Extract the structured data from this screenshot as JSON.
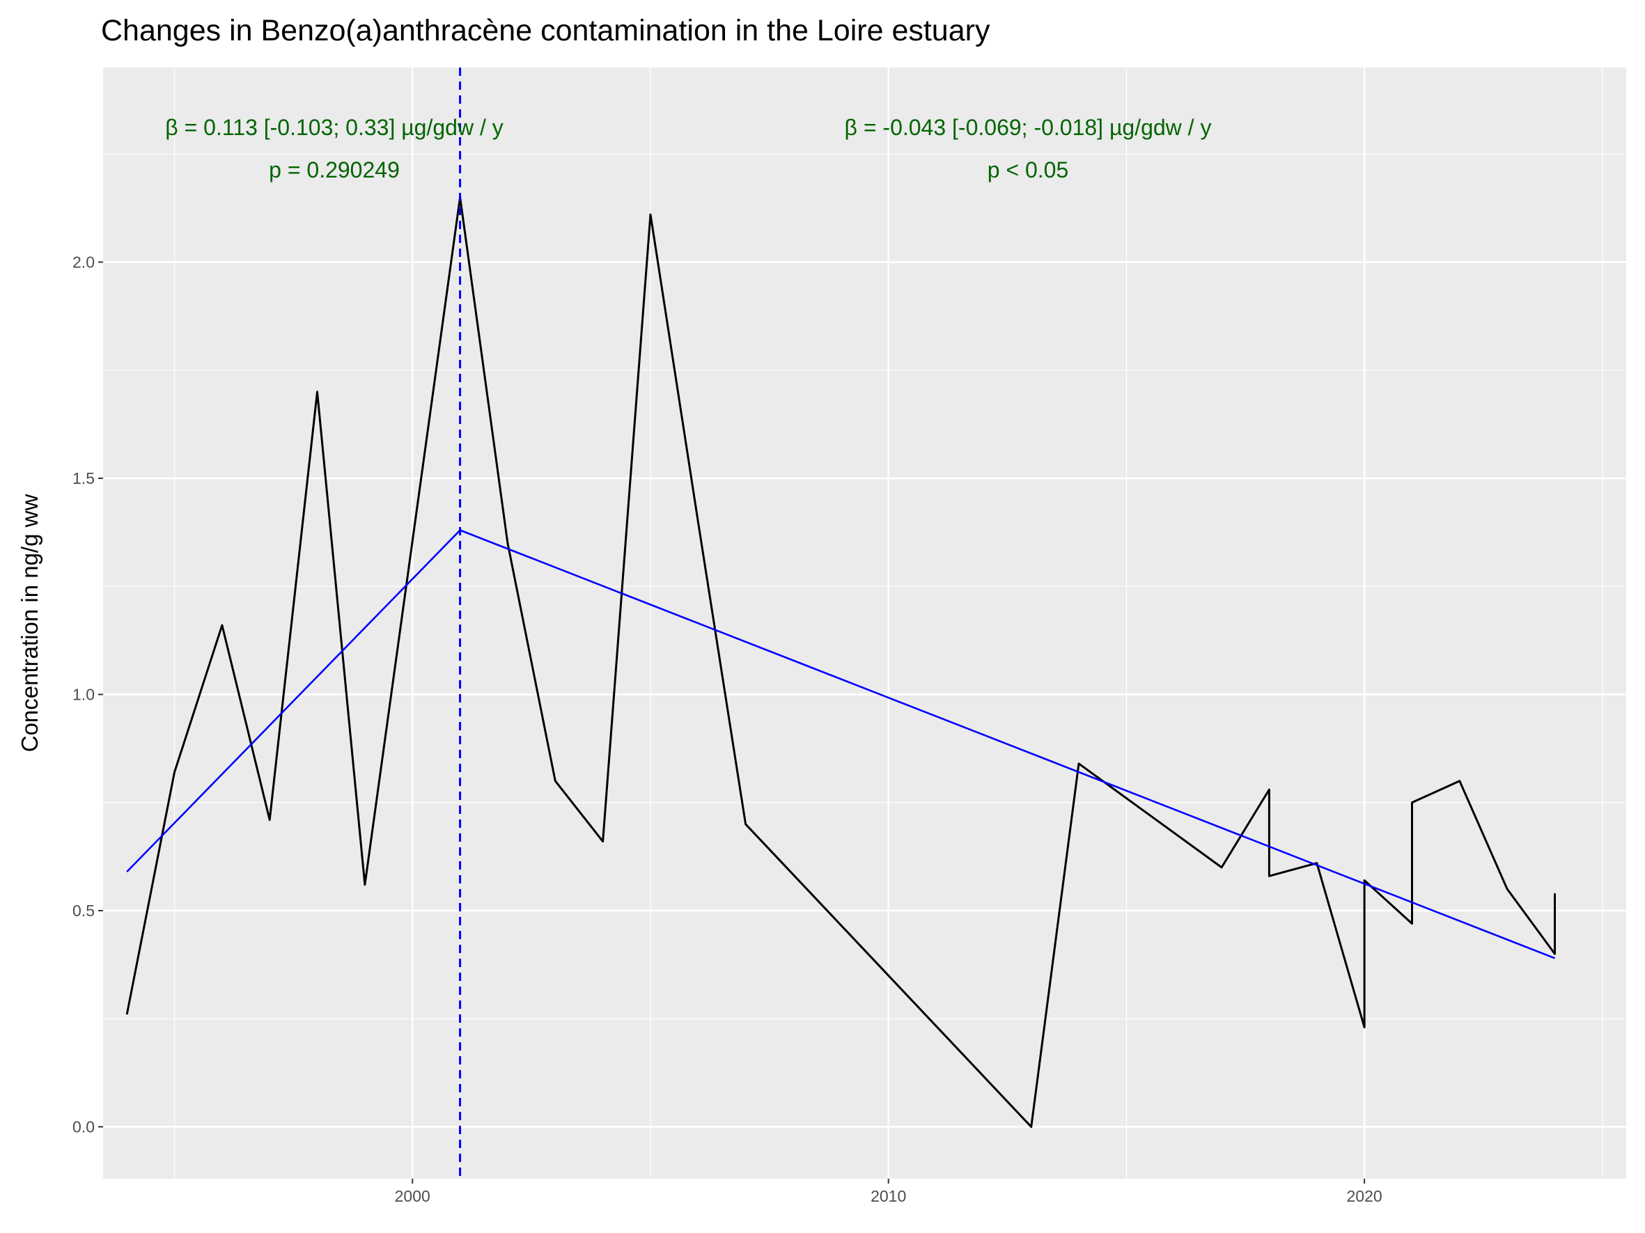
{
  "chart_data": {
    "type": "line",
    "title": "Changes in Benzo(a)anthracène contamination in the Loire estuary",
    "xlabel": "",
    "ylabel": "Concentration in ng/g ww",
    "xlim": [
      1993.5,
      2025.5
    ],
    "ylim": [
      -0.12,
      2.45
    ],
    "x_ticks": [
      2000,
      2010,
      2020
    ],
    "x_tick_labels": [
      "2000",
      "2010",
      "2020"
    ],
    "y_ticks": [
      0.0,
      0.5,
      1.0,
      1.5,
      2.0
    ],
    "y_tick_labels": [
      "0.0",
      "0.5",
      "1.0",
      "1.5",
      "2.0"
    ],
    "grid": true,
    "series": [
      {
        "color": "#000000",
        "x": [
          1994,
          1995,
          1996,
          1997,
          1998,
          1999,
          2001,
          2002,
          2003,
          2004,
          2005,
          2006,
          2007,
          2013,
          2014,
          2017,
          2018,
          2018,
          2019,
          2020,
          2020,
          2021,
          2021,
          2022,
          2023,
          2024,
          2024
        ],
        "values": [
          0.26,
          0.82,
          1.16,
          0.71,
          1.7,
          0.56,
          2.15,
          1.35,
          0.8,
          0.66,
          2.11,
          1.4,
          0.7,
          0.0,
          0.84,
          0.6,
          0.78,
          0.58,
          0.61,
          0.23,
          0.57,
          0.47,
          0.75,
          0.8,
          0.55,
          0.4,
          0.54
        ]
      },
      {
        "color": "#0000ff",
        "x": [
          1994,
          2001,
          2024
        ],
        "values": [
          0.59,
          1.38,
          0.39
        ]
      }
    ],
    "breakpoint": {
      "x": 2001,
      "color": "#0000ff",
      "style": "dashed"
    },
    "annotations": [
      {
        "line1": "β = 0.113 [-0.103; 0.33] µg/gdw / y",
        "line2": "p = 0.290249",
        "color": "#006400"
      },
      {
        "line1": "β = -0.043 [-0.069; -0.018] µg/gdw / y",
        "line2": "p < 0.05",
        "color": "#006400"
      }
    ],
    "panel_background": "#ebebeb",
    "gridline_color": "#ffffff"
  }
}
